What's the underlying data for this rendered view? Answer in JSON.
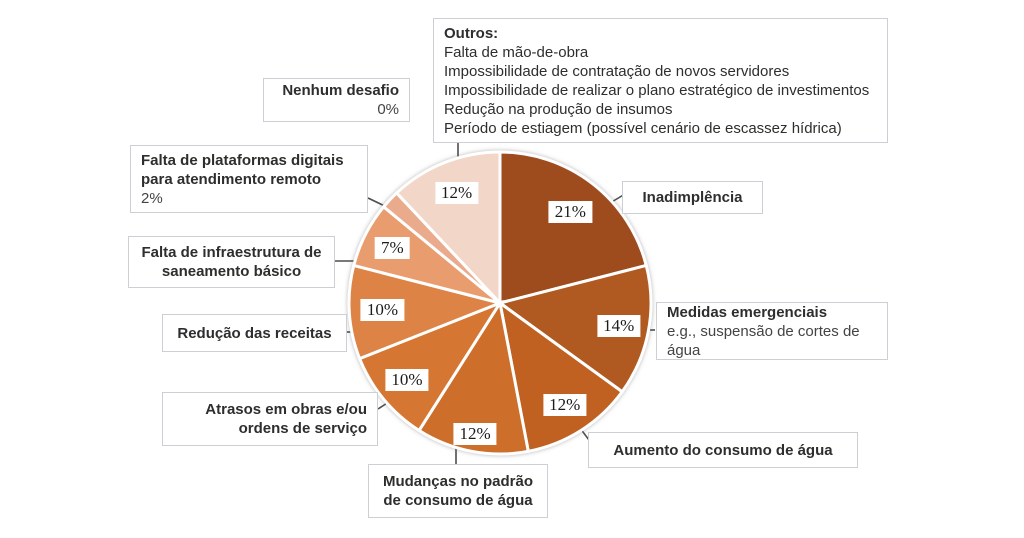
{
  "chart_data": {
    "type": "pie",
    "title": "",
    "start_angle_deg": 0,
    "direction": "clockwise",
    "legend_position": "callout-boxes",
    "slices": [
      {
        "id": "inadimplencia",
        "label": "Inadimplência",
        "pct": 21,
        "pct_label": "21%",
        "color": "#9E4B1E"
      },
      {
        "id": "medidas",
        "label": "Medidas emergenciais e.g., suspensão de cortes de água",
        "pct": 14,
        "pct_label": "14%",
        "color": "#B05A22"
      },
      {
        "id": "aumento",
        "label": "Aumento do consumo de água",
        "pct": 12,
        "pct_label": "12%",
        "color": "#C06122"
      },
      {
        "id": "mudancas",
        "label": "Mudanças no padrão de consumo de água",
        "pct": 12,
        "pct_label": "12%",
        "color": "#CD6E2B"
      },
      {
        "id": "atrasos",
        "label": "Atrasos em obras e/ou ordens de serviço",
        "pct": 10,
        "pct_label": "10%",
        "color": "#D57632"
      },
      {
        "id": "reducao",
        "label": "Redução das receitas",
        "pct": 10,
        "pct_label": "10%",
        "color": "#DD8345"
      },
      {
        "id": "infra",
        "label": "Falta de infraestrutura de saneamento básico",
        "pct": 7,
        "pct_label": "7%",
        "color": "#E99C6E"
      },
      {
        "id": "plataformas",
        "label": "Falta de plataformas digitais para atendimento remoto",
        "pct": 2,
        "pct_label": "2%",
        "color": "#EAAB8D"
      },
      {
        "id": "nenhum",
        "label": "Nenhum desafio",
        "pct": 0,
        "pct_label": "0%",
        "color": "#F5E2D8"
      },
      {
        "id": "outros",
        "label": "Outros",
        "pct": 12,
        "pct_label": "12%",
        "color": "#F2D6C8"
      }
    ]
  },
  "callouts": {
    "outros": {
      "title": "Outros:",
      "lines": [
        "Falta de mão-de-obra",
        "Impossibilidade de contratação de novos servidores",
        "Impossibilidade de realizar o plano estratégico de investimentos",
        "Redução na produção de insumos",
        "Período de estiagem (possível cenário de escassez hídrica)"
      ]
    },
    "nenhum": {
      "title": "Nenhum desafio",
      "value": "0%"
    },
    "plataformas": {
      "title": "Falta de plataformas digitais para atendimento remoto",
      "value": "2%"
    },
    "infra": {
      "title": "Falta de infraestrutura de saneamento básico"
    },
    "reducao": {
      "title": "Redução das receitas"
    },
    "atrasos": {
      "title": "Atrasos em obras e/ou ordens de serviço"
    },
    "mudancas": {
      "title": "Mudanças no padrão de consumo de água"
    },
    "aumento": {
      "title": "Aumento do consumo de água"
    },
    "medidas": {
      "title": "Medidas emergenciais",
      "subtitle": "e.g., suspensão de cortes de água"
    },
    "inadimplencia": {
      "title": "Inadimplência"
    }
  },
  "colors": {
    "leader_line": "#4d4d4d",
    "callout_border": "#ccd0d4",
    "text": "#2e2e2e",
    "background": "#ffffff"
  }
}
